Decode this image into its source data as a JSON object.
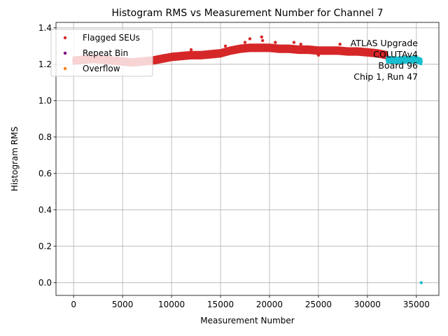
{
  "chart_data": {
    "type": "scatter",
    "title": "Histogram RMS vs Measurement Number for Channel 7",
    "xlabel": "Measurement Number",
    "ylabel": "Histogram RMS",
    "xlim": [
      -1800,
      37300
    ],
    "ylim": [
      -0.07,
      1.43
    ],
    "x_ticks": [
      0,
      5000,
      10000,
      15000,
      20000,
      25000,
      30000,
      35000
    ],
    "x_tick_labels": [
      "0",
      "5000",
      "10000",
      "15000",
      "20000",
      "25000",
      "30000",
      "35000"
    ],
    "y_ticks": [
      0.0,
      0.2,
      0.4,
      0.6,
      0.8,
      1.0,
      1.2,
      1.4
    ],
    "y_tick_labels": [
      "0.0",
      "0.2",
      "0.4",
      "0.6",
      "0.8",
      "1.0",
      "1.2",
      "1.4"
    ],
    "grid": true,
    "legend_position": "top-left",
    "legend": [
      {
        "label": "Flagged SEUs",
        "color": "#d62728"
      },
      {
        "label": "Repeat Bin",
        "color": "#800080"
      },
      {
        "label": "Overflow",
        "color": "#ff7f0e"
      }
    ],
    "annotation_lines": [
      "ATLAS Upgrade",
      "COLUTAv4",
      "Board 96",
      "Chip 1, Run 47"
    ],
    "annotation_position": "top-right",
    "series": [
      {
        "kind": "band",
        "color": "#d62728",
        "x": [
          0,
          1000,
          2000,
          3000,
          4000,
          5000,
          6000,
          7000,
          8000,
          9000,
          10000,
          11000,
          12000,
          13000,
          14000,
          15000,
          16000,
          17000,
          18000,
          19000,
          20000,
          21000,
          22000,
          23000,
          24000,
          25000,
          26000,
          27000,
          28000,
          29000,
          30000,
          31000,
          32000
        ],
        "y": [
          1.22,
          1.225,
          1.23,
          1.225,
          1.22,
          1.215,
          1.21,
          1.215,
          1.22,
          1.23,
          1.24,
          1.245,
          1.25,
          1.25,
          1.255,
          1.26,
          1.275,
          1.285,
          1.29,
          1.29,
          1.29,
          1.285,
          1.285,
          1.28,
          1.28,
          1.275,
          1.275,
          1.275,
          1.27,
          1.27,
          1.265,
          1.26,
          1.25
        ],
        "spread": 0.035
      },
      {
        "kind": "band",
        "color": "#17becf",
        "x": [
          32000,
          33000,
          34000,
          35000,
          35500
        ],
        "y": [
          1.225,
          1.222,
          1.225,
          1.225,
          1.215
        ],
        "spread": 0.03
      },
      {
        "kind": "points",
        "color": "#d62728",
        "points": [
          [
            12000,
            1.28
          ],
          [
            15500,
            1.3
          ],
          [
            17500,
            1.32
          ],
          [
            18000,
            1.34
          ],
          [
            19200,
            1.35
          ],
          [
            19300,
            1.33
          ],
          [
            20600,
            1.32
          ],
          [
            22500,
            1.32
          ],
          [
            23200,
            1.31
          ],
          [
            25000,
            1.25
          ],
          [
            27200,
            1.31
          ]
        ]
      },
      {
        "kind": "points",
        "color": "#17becf",
        "points": [
          [
            35500,
            0.0
          ]
        ]
      }
    ]
  }
}
